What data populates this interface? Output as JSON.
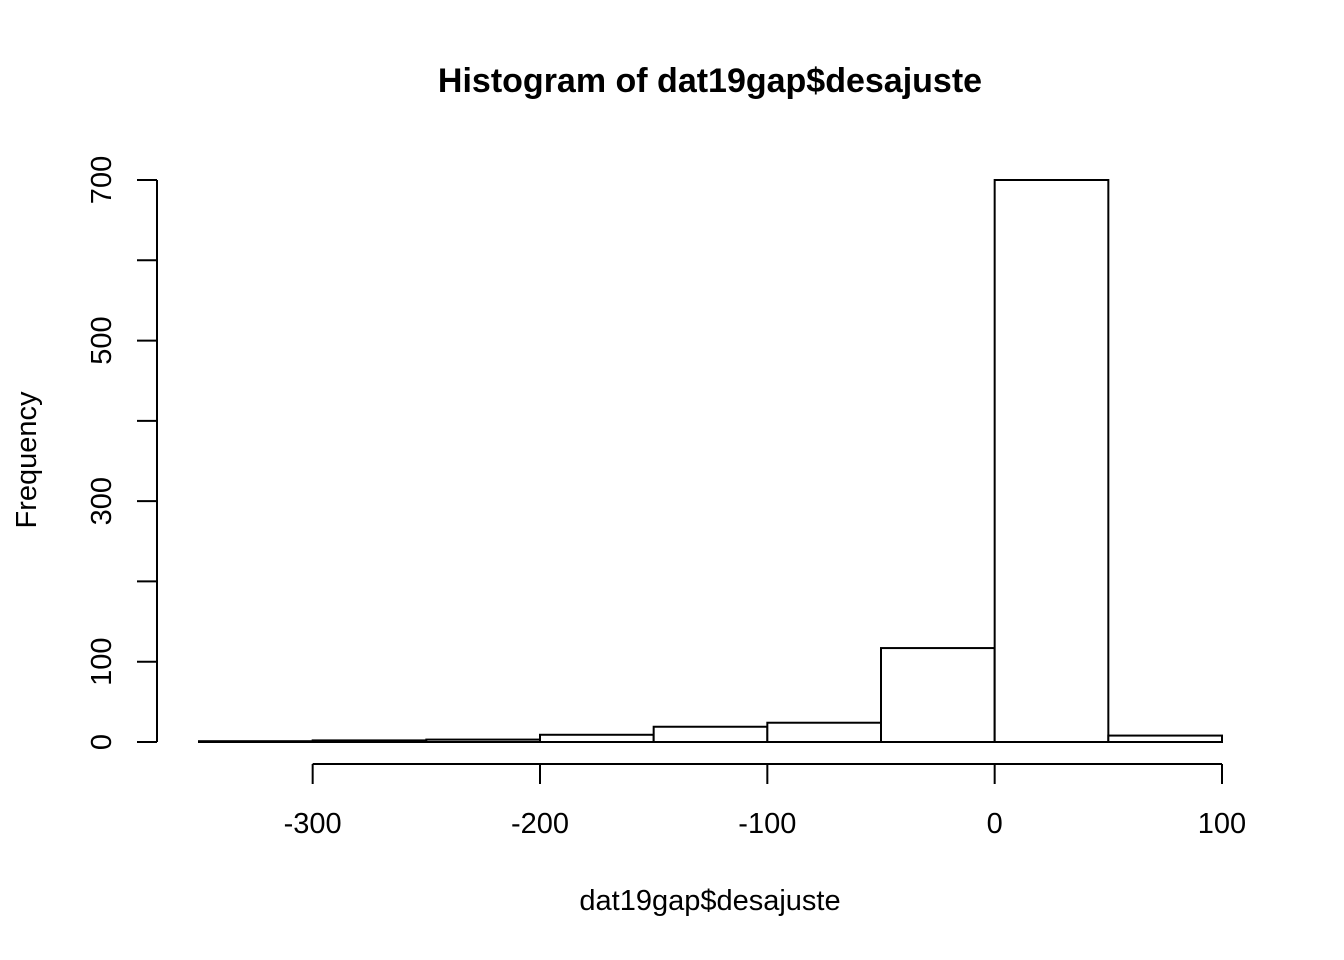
{
  "chart_data": {
    "type": "bar",
    "title": "Histogram of dat19gap$desajuste",
    "xlabel": "dat19gap$desajuste",
    "ylabel": "Frequency",
    "bin_edges": [
      -350,
      -300,
      -250,
      -200,
      -150,
      -100,
      -50,
      0,
      50,
      100
    ],
    "values": [
      1,
      2,
      3,
      9,
      19,
      24,
      117,
      700,
      8
    ],
    "xlim": [
      -350,
      100
    ],
    "ylim": [
      0,
      700
    ],
    "x_ticks": [
      -300,
      -200,
      -100,
      0,
      100
    ],
    "x_tick_labels": [
      "-300",
      "-200",
      "-100",
      "0",
      "100"
    ],
    "y_ticks": [
      0,
      100,
      200,
      300,
      400,
      500,
      600,
      700
    ],
    "y_tick_labels": [
      "0",
      "100",
      "",
      "300",
      "",
      "500",
      "",
      "700"
    ],
    "grid": false,
    "colors": {
      "bar_fill": "#ffffff",
      "bar_stroke": "#000000"
    }
  }
}
